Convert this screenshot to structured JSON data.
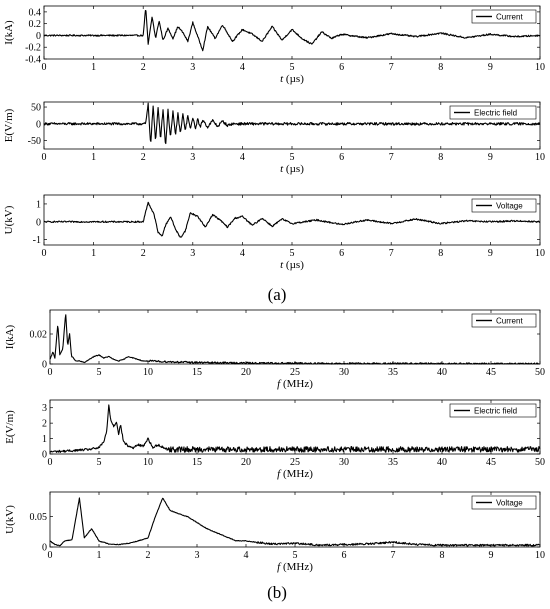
{
  "panels": [
    {
      "label": "(a)"
    },
    {
      "label": "(b)"
    }
  ],
  "chart_data": [
    {
      "type": "line",
      "panel": "a",
      "ylabel": "I(kA)",
      "xlabel": "t (µs)",
      "xlabel_italic": "t",
      "xlabel_rest": " (µs)",
      "xlim": [
        0,
        10
      ],
      "ylim": [
        -0.4,
        0.5
      ],
      "xticks": [
        0,
        1,
        2,
        3,
        4,
        5,
        6,
        7,
        8,
        9,
        10
      ],
      "yticks": [
        -0.4,
        -0.2,
        0,
        0.2,
        0.4
      ],
      "ytick_labels": [
        "-0.4",
        "-0.2",
        "0",
        "0.2",
        "0.4"
      ],
      "legend": {
        "label": "Current",
        "position": "top-right"
      },
      "series": [
        {
          "name": "Current",
          "baseline": 0,
          "noise": 0.012,
          "onset": 2.0,
          "x": [
            2.0,
            2.05,
            2.1,
            2.18,
            2.25,
            2.32,
            2.4,
            2.5,
            2.6,
            2.7,
            2.8,
            2.9,
            3.0,
            3.1,
            3.2,
            3.3,
            3.45,
            3.6,
            3.8,
            4.0,
            4.2,
            4.4,
            4.6,
            4.8,
            5.0,
            5.2,
            5.4,
            5.6,
            5.8,
            6.0,
            6.5,
            7.0,
            7.5,
            8.0,
            8.5,
            9.0,
            9.5,
            10.0
          ],
          "y": [
            0,
            0.48,
            -0.15,
            0.32,
            -0.05,
            0.25,
            -0.08,
            0.12,
            -0.05,
            0.15,
            0.05,
            -0.1,
            0.22,
            -0.02,
            -0.25,
            0.15,
            -0.05,
            0.18,
            -0.1,
            0.1,
            0.02,
            -0.1,
            0.15,
            -0.08,
            0.1,
            -0.05,
            -0.15,
            0.06,
            -0.05,
            0.02,
            -0.04,
            0.03,
            -0.02,
            0.04,
            -0.04,
            0.02,
            -0.02,
            0.0
          ]
        }
      ]
    },
    {
      "type": "line",
      "panel": "a",
      "ylabel": "E(V/m)",
      "xlabel": "t (µs)",
      "xlabel_italic": "t",
      "xlabel_rest": " (µs)",
      "xlim": [
        0,
        10
      ],
      "ylim": [
        -75,
        65
      ],
      "xticks": [
        0,
        1,
        2,
        3,
        4,
        5,
        6,
        7,
        8,
        9,
        10
      ],
      "yticks": [
        -50,
        0,
        50
      ],
      "ytick_labels": [
        "-50",
        "0",
        "50"
      ],
      "legend": {
        "label": "Electric field",
        "position": "top-right"
      },
      "series": [
        {
          "name": "Electric field",
          "baseline": 0,
          "noise": 3.5,
          "onset": 2.05,
          "x": [
            2.05,
            2.1,
            2.15,
            2.2,
            2.25,
            2.3,
            2.35,
            2.4,
            2.45,
            2.5,
            2.55,
            2.6,
            2.65,
            2.7,
            2.75,
            2.8,
            2.85,
            2.9,
            2.95,
            3.0,
            3.05,
            3.1,
            3.15,
            3.2,
            3.3,
            3.4,
            3.5,
            3.6,
            3.7,
            3.8
          ],
          "y": [
            0,
            58,
            -62,
            55,
            -55,
            50,
            -45,
            45,
            -68,
            40,
            -40,
            35,
            -35,
            30,
            -30,
            28,
            -20,
            25,
            -18,
            20,
            -15,
            15,
            -12,
            12,
            -10,
            10,
            -8,
            8,
            -5,
            0
          ]
        }
      ]
    },
    {
      "type": "line",
      "panel": "a",
      "ylabel": "U(kV)",
      "xlabel": "t (µs)",
      "xlabel_italic": "t",
      "xlabel_rest": " (µs)",
      "xlim": [
        0,
        10
      ],
      "ylim": [
        -1.3,
        1.5
      ],
      "xticks": [
        0,
        1,
        2,
        3,
        4,
        5,
        6,
        7,
        8,
        9,
        10
      ],
      "yticks": [
        -1,
        0,
        1
      ],
      "ytick_labels": [
        "-1",
        "0",
        "1"
      ],
      "legend": {
        "label": "Voltage",
        "position": "top-right"
      },
      "series": [
        {
          "name": "Voltage",
          "baseline": 0,
          "noise": 0.04,
          "onset": 2.0,
          "x": [
            2.0,
            2.1,
            2.15,
            2.22,
            2.3,
            2.38,
            2.45,
            2.55,
            2.65,
            2.75,
            2.85,
            2.95,
            3.1,
            3.25,
            3.4,
            3.55,
            3.7,
            3.85,
            4.0,
            4.2,
            4.4,
            4.6,
            4.8,
            5.0,
            5.5,
            6.0,
            6.5,
            7.0,
            7.5,
            8.0,
            8.5,
            9.0,
            9.5,
            10.0
          ],
          "y": [
            0,
            1.1,
            0.8,
            0.4,
            -0.6,
            -0.8,
            -0.2,
            0.3,
            -0.4,
            -0.9,
            -0.5,
            0.5,
            0.3,
            -0.3,
            0.4,
            0.1,
            -0.3,
            0.2,
            0.3,
            -0.2,
            0.2,
            -0.25,
            0.15,
            -0.1,
            0.1,
            -0.15,
            0.1,
            -0.1,
            0.15,
            -0.1,
            0.05,
            0.0,
            0.05,
            0.0
          ]
        }
      ]
    },
    {
      "type": "line",
      "panel": "b",
      "ylabel": "I(kA)",
      "xlabel": "f (MHz)",
      "xlabel_italic": "f",
      "xlabel_rest": " (MHz)",
      "xlim": [
        0,
        50
      ],
      "ylim": [
        0,
        0.036
      ],
      "xticks": [
        0,
        5,
        10,
        15,
        20,
        25,
        30,
        35,
        40,
        45,
        50
      ],
      "yticks": [
        0,
        0.02
      ],
      "ytick_labels": [
        "0",
        "0.02"
      ],
      "legend": {
        "label": "Current",
        "position": "top-right"
      },
      "series": [
        {
          "name": "Current",
          "floor": 0.0,
          "noise": 0.0006,
          "floor_from": 10,
          "x": [
            0,
            0.3,
            0.5,
            0.8,
            1.0,
            1.3,
            1.6,
            1.8,
            2.0,
            2.2,
            2.4,
            2.6,
            3.0,
            3.5,
            4.0,
            4.5,
            5.0,
            5.5,
            6.0,
            6.5,
            7.0,
            7.5,
            8.0,
            8.5,
            9.0,
            9.5,
            10,
            12,
            15,
            20,
            30,
            40,
            50
          ],
          "y": [
            0.003,
            0.008,
            0.004,
            0.027,
            0.006,
            0.01,
            0.034,
            0.012,
            0.02,
            0.005,
            0.004,
            0.002,
            0.002,
            0.001,
            0.003,
            0.005,
            0.006,
            0.004,
            0.005,
            0.003,
            0.002,
            0.003,
            0.005,
            0.004,
            0.003,
            0.002,
            0.002,
            0.0015,
            0.001,
            0.0006,
            0.0003,
            0.0002,
            0.0001
          ]
        }
      ]
    },
    {
      "type": "line",
      "panel": "b",
      "ylabel": "E(V/m)",
      "xlabel": "f (MHz)",
      "xlabel_italic": "f",
      "xlabel_rest": " (MHz)",
      "xlim": [
        0,
        50
      ],
      "ylim": [
        0,
        3.5
      ],
      "xticks": [
        0,
        5,
        10,
        15,
        20,
        25,
        30,
        35,
        40,
        45,
        50
      ],
      "yticks": [
        0,
        1,
        2,
        3
      ],
      "ytick_labels": [
        "0",
        "1",
        "2",
        "3"
      ],
      "legend": {
        "label": "Electric field",
        "position": "top-right"
      },
      "series": [
        {
          "name": "Electric field",
          "floor": 0.15,
          "noise": 0.18,
          "floor_from": 12,
          "x": [
            0,
            2,
            4,
            5,
            5.5,
            5.8,
            6.0,
            6.2,
            6.5,
            6.8,
            7.0,
            7.2,
            7.5,
            8.0,
            8.5,
            9.0,
            9.5,
            10,
            10.5,
            11,
            12
          ],
          "y": [
            0.15,
            0.2,
            0.3,
            0.4,
            0.8,
            1.5,
            3.2,
            2.2,
            1.8,
            2.1,
            1.3,
            1.9,
            0.8,
            0.5,
            0.4,
            0.6,
            0.5,
            1.0,
            0.4,
            0.6,
            0.3
          ]
        }
      ]
    },
    {
      "type": "line",
      "panel": "b",
      "ylabel": "U(kV)",
      "xlabel": "f (MHz)",
      "xlabel_italic": "f",
      "xlabel_rest": " (MHz)",
      "xlim": [
        0,
        10
      ],
      "ylim": [
        0,
        0.09
      ],
      "xticks": [
        0,
        1,
        2,
        3,
        4,
        5,
        6,
        7,
        8,
        9,
        10
      ],
      "yticks": [
        0,
        0.05
      ],
      "ytick_labels": [
        "0",
        "0.05"
      ],
      "legend": {
        "label": "Voltage",
        "position": "top-right"
      },
      "series": [
        {
          "name": "Voltage",
          "floor": 0.003,
          "noise": 0.0015,
          "floor_from": 4.2,
          "x": [
            0,
            0.1,
            0.2,
            0.3,
            0.45,
            0.6,
            0.7,
            0.85,
            1.0,
            1.2,
            1.4,
            1.6,
            1.8,
            2.0,
            2.15,
            2.3,
            2.45,
            2.6,
            2.8,
            3.0,
            3.2,
            3.5,
            3.8,
            4.0,
            4.5,
            5.0,
            5.5,
            6.0,
            6.5,
            7.0,
            7.5,
            8.0,
            9.0,
            10.0
          ],
          "y": [
            0.01,
            0.004,
            0.002,
            0.01,
            0.012,
            0.08,
            0.015,
            0.03,
            0.01,
            0.005,
            0.004,
            0.006,
            0.01,
            0.015,
            0.05,
            0.08,
            0.06,
            0.055,
            0.05,
            0.04,
            0.03,
            0.02,
            0.01,
            0.01,
            0.005,
            0.006,
            0.003,
            0.004,
            0.005,
            0.008,
            0.004,
            0.003,
            0.002,
            0.002
          ]
        }
      ]
    }
  ]
}
